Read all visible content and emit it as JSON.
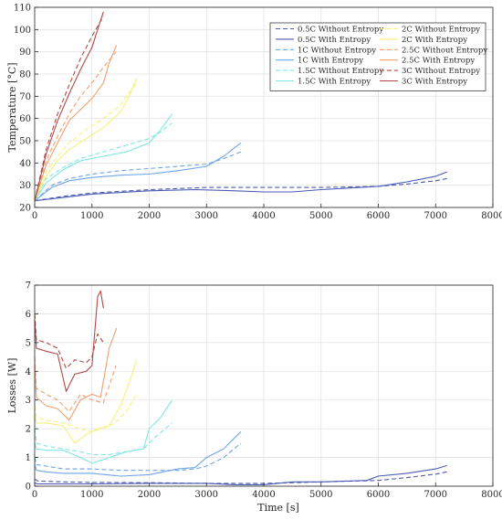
{
  "chart_data": [
    {
      "type": "line",
      "xlabel": "",
      "ylabel": "Temperature [°C]",
      "xlim": [
        0,
        8000
      ],
      "ylim": [
        20,
        110
      ],
      "xticks": [
        0,
        1000,
        2000,
        3000,
        4000,
        5000,
        6000,
        7000,
        8000
      ],
      "yticks": [
        20,
        30,
        40,
        50,
        60,
        70,
        80,
        90,
        100,
        110
      ],
      "grid": true,
      "legend_position": "top-right",
      "legend_columns": 2,
      "series": [
        {
          "name": "0.5C Without Entropy",
          "color": "#4a5bb5",
          "dash": true,
          "x": [
            0,
            500,
            1000,
            2000,
            3000,
            4000,
            5000,
            6000,
            6500,
            7000,
            7200
          ],
          "y": [
            23,
            25,
            26.5,
            28,
            29,
            29,
            29,
            29.5,
            30.5,
            32,
            33
          ]
        },
        {
          "name": "0.5C With Entropy",
          "color": "#4a5bb5",
          "dash": false,
          "x": [
            0,
            500,
            1000,
            2000,
            2800,
            3500,
            4000,
            4500,
            5000,
            6000,
            6500,
            7000,
            7200
          ],
          "y": [
            23,
            24.5,
            26,
            27.5,
            28,
            27.5,
            27,
            27,
            28,
            29.5,
            31.5,
            34,
            36
          ]
        },
        {
          "name": "1C Without Entropy",
          "color": "#6fa5e8",
          "dash": true,
          "x": [
            0,
            300,
            600,
            1000,
            1500,
            2000,
            2500,
            3000,
            3300,
            3600
          ],
          "y": [
            23,
            30,
            33,
            35,
            36.5,
            37.5,
            38.5,
            39.5,
            42,
            45
          ]
        },
        {
          "name": "1C With Entropy",
          "color": "#6fa5e8",
          "dash": false,
          "x": [
            0,
            300,
            600,
            1000,
            1500,
            2000,
            2500,
            3000,
            3300,
            3600
          ],
          "y": [
            23,
            29,
            32,
            33.5,
            34.5,
            35,
            36.5,
            38.5,
            43,
            49
          ]
        },
        {
          "name": "1.5C Without Entropy",
          "color": "#7fe6e6",
          "dash": true,
          "x": [
            0,
            200,
            500,
            800,
            1200,
            1600,
            2000,
            2200,
            2400
          ],
          "y": [
            23,
            33,
            38,
            42,
            45,
            48,
            51,
            54,
            58
          ]
        },
        {
          "name": "1.5C With Entropy",
          "color": "#7fe6e6",
          "dash": false,
          "x": [
            0,
            200,
            500,
            800,
            1200,
            1600,
            2000,
            2200,
            2400
          ],
          "y": [
            23,
            31,
            37,
            41,
            43,
            45,
            49,
            55,
            62
          ]
        },
        {
          "name": "2C Without Entropy",
          "color": "#f7f07a",
          "dash": true,
          "x": [
            0,
            200,
            400,
            600,
            900,
            1200,
            1500,
            1600,
            1780
          ],
          "y": [
            23,
            36,
            43,
            49,
            55,
            60,
            66,
            70,
            76
          ]
        },
        {
          "name": "2C With Entropy",
          "color": "#f7f07a",
          "dash": false,
          "x": [
            0,
            200,
            400,
            600,
            900,
            1200,
            1500,
            1650,
            1780
          ],
          "y": [
            23,
            34,
            41,
            46,
            51,
            56,
            63,
            70,
            78
          ]
        },
        {
          "name": "2.5C Without Entropy",
          "color": "#f0a070",
          "dash": true,
          "x": [
            0,
            200,
            400,
            600,
            800,
            1000,
            1200,
            1420
          ],
          "y": [
            23,
            41,
            52,
            62,
            70,
            76,
            83,
            90
          ]
        },
        {
          "name": "2.5C With Entropy",
          "color": "#f0a070",
          "dash": false,
          "x": [
            0,
            200,
            400,
            600,
            800,
            1000,
            1200,
            1300,
            1430
          ],
          "y": [
            23,
            39,
            49,
            59,
            64,
            69,
            76,
            85,
            93
          ]
        },
        {
          "name": "3C Without Entropy",
          "color": "#b04a4a",
          "dash": true,
          "x": [
            0,
            200,
            400,
            600,
            800,
            1000,
            1200
          ],
          "y": [
            23,
            46,
            62,
            75,
            87,
            97,
            106
          ]
        },
        {
          "name": "3C With Entropy",
          "color": "#b04a4a",
          "dash": false,
          "x": [
            0,
            200,
            400,
            600,
            800,
            1000,
            1100,
            1200
          ],
          "y": [
            23,
            44,
            59,
            71,
            82,
            92,
            100,
            108
          ]
        }
      ]
    },
    {
      "type": "line",
      "xlabel": "Time [s]",
      "ylabel": "Losses [W]",
      "xlim": [
        0,
        8000
      ],
      "ylim": [
        0,
        7
      ],
      "xticks": [
        0,
        1000,
        2000,
        3000,
        4000,
        5000,
        6000,
        7000,
        8000
      ],
      "yticks": [
        0,
        1,
        2,
        3,
        4,
        5,
        6,
        7
      ],
      "grid": true,
      "series": [
        {
          "name": "0.5C Without Entropy",
          "color": "#4a5bb5",
          "dash": true,
          "x": [
            0,
            50,
            500,
            1000,
            2000,
            3000,
            4000,
            4500,
            5000,
            6000,
            6500,
            7000,
            7200
          ],
          "y": [
            0.25,
            0.18,
            0.15,
            0.13,
            0.12,
            0.1,
            0.1,
            0.12,
            0.15,
            0.2,
            0.3,
            0.42,
            0.5
          ]
        },
        {
          "name": "0.5C With Entropy",
          "color": "#4a5bb5",
          "dash": false,
          "x": [
            0,
            50,
            500,
            1000,
            2000,
            3000,
            3500,
            4000,
            4500,
            5000,
            5800,
            6000,
            6500,
            7000,
            7200
          ],
          "y": [
            0.12,
            0.08,
            0.08,
            0.08,
            0.1,
            0.1,
            0.05,
            0.05,
            0.15,
            0.15,
            0.2,
            0.35,
            0.45,
            0.6,
            0.72
          ]
        },
        {
          "name": "1C Without Entropy",
          "color": "#6fa5e8",
          "dash": true,
          "x": [
            0,
            30,
            200,
            500,
            1000,
            1500,
            2000,
            2500,
            2800,
            3000,
            3300,
            3600
          ],
          "y": [
            1.0,
            0.75,
            0.7,
            0.6,
            0.6,
            0.55,
            0.55,
            0.55,
            0.6,
            0.7,
            1.0,
            1.5
          ]
        },
        {
          "name": "1C With Entropy",
          "color": "#6fa5e8",
          "dash": false,
          "x": [
            0,
            30,
            200,
            500,
            1000,
            1500,
            2000,
            2500,
            2800,
            3000,
            3300,
            3600
          ],
          "y": [
            0.75,
            0.55,
            0.5,
            0.45,
            0.45,
            0.35,
            0.4,
            0.6,
            0.65,
            1.0,
            1.3,
            1.9
          ]
        },
        {
          "name": "1.5C Without Entropy",
          "color": "#7fe6e6",
          "dash": true,
          "x": [
            0,
            30,
            200,
            500,
            800,
            1000,
            1300,
            1600,
            1900,
            2100,
            2400
          ],
          "y": [
            2.0,
            1.5,
            1.4,
            1.3,
            1.2,
            1.1,
            1.1,
            1.2,
            1.3,
            1.7,
            2.2
          ]
        },
        {
          "name": "1.5C With Entropy",
          "color": "#7fe6e6",
          "dash": false,
          "x": [
            0,
            30,
            200,
            500,
            800,
            1000,
            1300,
            1600,
            1900,
            2000,
            2200,
            2400
          ],
          "y": [
            1.5,
            1.3,
            1.25,
            1.25,
            1.0,
            0.8,
            1.0,
            1.2,
            1.3,
            2.0,
            2.4,
            3.0
          ]
        },
        {
          "name": "2C Without Entropy",
          "color": "#f7f07a",
          "dash": true,
          "x": [
            0,
            30,
            200,
            500,
            800,
            1000,
            1200,
            1400,
            1600,
            1780
          ],
          "y": [
            2.8,
            2.4,
            2.3,
            2.2,
            2.0,
            1.9,
            2.0,
            2.2,
            2.6,
            3.2
          ]
        },
        {
          "name": "2C With Entropy",
          "color": "#f7f07a",
          "dash": false,
          "x": [
            0,
            30,
            200,
            500,
            700,
            900,
            1100,
            1300,
            1500,
            1650,
            1780
          ],
          "y": [
            2.5,
            2.2,
            2.2,
            2.1,
            1.5,
            1.8,
            2.0,
            2.1,
            2.8,
            3.6,
            4.4
          ]
        },
        {
          "name": "2.5C Without Entropy",
          "color": "#f0a070",
          "dash": true,
          "x": [
            0,
            30,
            200,
            400,
            600,
            800,
            1000,
            1200,
            1300,
            1420
          ],
          "y": [
            4.5,
            3.4,
            3.2,
            3.0,
            2.6,
            3.2,
            3.0,
            2.9,
            3.5,
            4.2
          ]
        },
        {
          "name": "2.5C With Entropy",
          "color": "#f0a070",
          "dash": false,
          "x": [
            0,
            30,
            200,
            400,
            600,
            800,
            1000,
            1150,
            1300,
            1430
          ],
          "y": [
            4.2,
            3.1,
            2.8,
            2.7,
            2.3,
            3.0,
            3.2,
            3.1,
            4.8,
            5.5
          ]
        },
        {
          "name": "3C Without Entropy",
          "color": "#b04a4a",
          "dash": true,
          "x": [
            0,
            30,
            200,
            400,
            550,
            700,
            900,
            1000,
            1100,
            1200
          ],
          "y": [
            6.0,
            5.1,
            5.0,
            4.8,
            4.1,
            4.4,
            4.3,
            4.5,
            5.3,
            5.0
          ]
        },
        {
          "name": "3C With Entropy",
          "color": "#b04a4a",
          "dash": false,
          "x": [
            0,
            30,
            200,
            400,
            550,
            700,
            900,
            1000,
            1100,
            1150,
            1200
          ],
          "y": [
            5.8,
            4.8,
            4.7,
            4.6,
            3.3,
            3.9,
            4.0,
            4.2,
            6.6,
            6.8,
            6.2
          ]
        }
      ]
    }
  ]
}
